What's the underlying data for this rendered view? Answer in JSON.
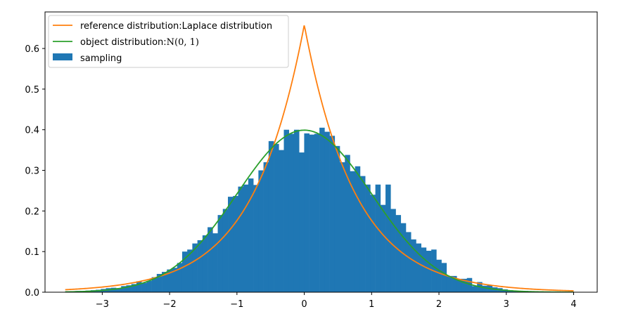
{
  "chart_data": {
    "type": "histogram+line",
    "xlim": [
      -3.85,
      4.35
    ],
    "ylim": [
      0,
      0.69
    ],
    "xticks": [
      -3,
      -2,
      -1,
      0,
      1,
      2,
      3,
      4
    ],
    "xtick_labels": [
      "−3",
      "−2",
      "−1",
      "0",
      "1",
      "2",
      "3",
      "4"
    ],
    "yticks": [
      0.0,
      0.1,
      0.2,
      0.3,
      0.4,
      0.5,
      0.6
    ],
    "ytick_labels": [
      "0.0",
      "0.1",
      "0.2",
      "0.3",
      "0.4",
      "0.5",
      "0.6"
    ],
    "legend_position": "upper-left",
    "legend": {
      "reference": "reference distribution:Laplace distribution",
      "object_prefix": "object distribution:",
      "object_math": "N(0, 1)",
      "sampling": "sampling"
    },
    "colors": {
      "reference": "#ff7f0e",
      "object": "#2ca02c",
      "sampling": "#1f77b4"
    },
    "series": [
      {
        "name": "reference distribution:Laplace distribution",
        "type": "line",
        "function": "laplace",
        "peak": 0.658,
        "scale": 0.76,
        "x_range": [
          -3.55,
          4.0
        ]
      },
      {
        "name": "object distribution:N(0, 1)",
        "type": "line",
        "function": "normal",
        "mean": 0,
        "std": 1,
        "x_range": [
          -3.55,
          4.0
        ]
      },
      {
        "name": "sampling",
        "type": "histogram",
        "bin_start": -3.55,
        "bin_width": 0.0755,
        "values": [
          0.002,
          0.002,
          0.003,
          0.003,
          0.004,
          0.005,
          0.006,
          0.008,
          0.01,
          0.011,
          0.01,
          0.015,
          0.017,
          0.02,
          0.027,
          0.023,
          0.028,
          0.037,
          0.045,
          0.05,
          0.056,
          0.06,
          0.072,
          0.1,
          0.105,
          0.12,
          0.128,
          0.14,
          0.16,
          0.145,
          0.19,
          0.205,
          0.235,
          0.237,
          0.26,
          0.265,
          0.28,
          0.264,
          0.3,
          0.32,
          0.372,
          0.365,
          0.35,
          0.4,
          0.39,
          0.4,
          0.344,
          0.391,
          0.388,
          0.39,
          0.405,
          0.395,
          0.385,
          0.36,
          0.32,
          0.338,
          0.298,
          0.31,
          0.286,
          0.265,
          0.24,
          0.265,
          0.215,
          0.265,
          0.205,
          0.19,
          0.17,
          0.148,
          0.13,
          0.12,
          0.11,
          0.102,
          0.105,
          0.08,
          0.072,
          0.04,
          0.04,
          0.033,
          0.033,
          0.035,
          0.015,
          0.025,
          0.016,
          0.018,
          0.012,
          0.01,
          0.007,
          0.005,
          0.004,
          0.003,
          0.003,
          0.002,
          0.002,
          0.001,
          0.001,
          0.001,
          0.001,
          0.001,
          0.001,
          0.001
        ]
      }
    ]
  }
}
